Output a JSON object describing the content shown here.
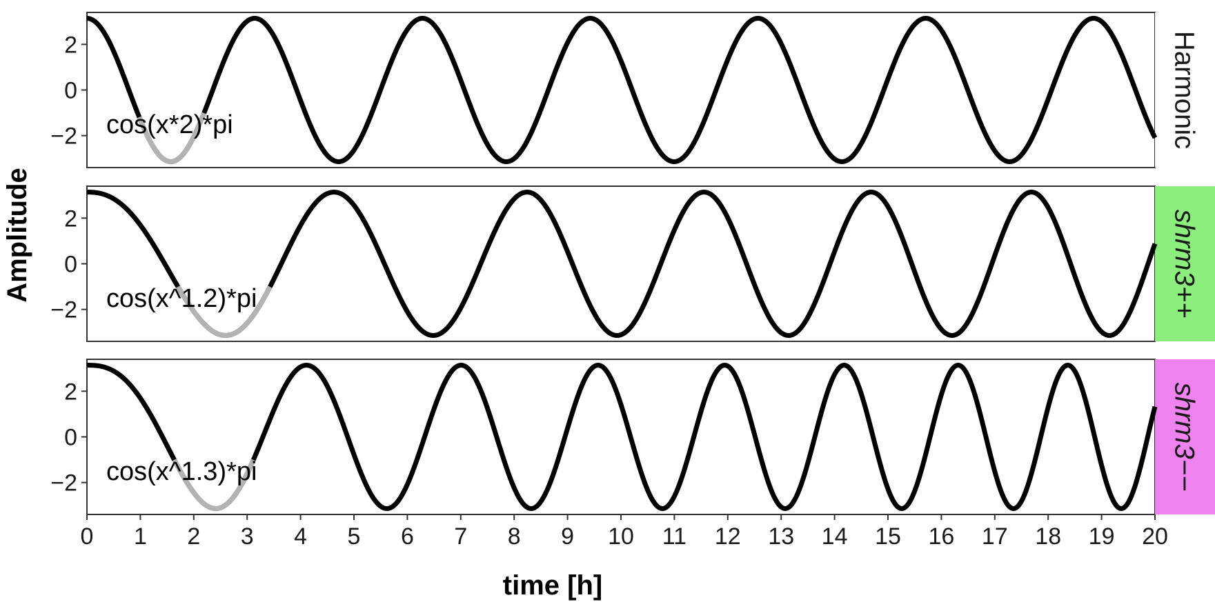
{
  "chart_data": {
    "type": "line",
    "xlabel": "time [h]",
    "ylabel": "Amplitude",
    "xlim": [
      0,
      20
    ],
    "ylim": [
      -3.4,
      3.4
    ],
    "x_ticks": [
      0,
      1,
      2,
      3,
      4,
      5,
      6,
      7,
      8,
      9,
      10,
      11,
      12,
      13,
      14,
      15,
      16,
      17,
      18,
      19,
      20
    ],
    "y_ticks": [
      -2,
      0,
      2
    ],
    "y_tick_labels": [
      "−2",
      "0",
      "2"
    ],
    "grid": false,
    "line_color": "#000000",
    "highlight_color": "#b3b3b3",
    "facets": [
      {
        "strip_label": "Harmonic",
        "strip_fill": "#ffffff",
        "strip_italic": false,
        "annotation": "cos(x*2)*pi",
        "formula": "harmonic",
        "exponent": 1,
        "highlight_x": [
          0.98,
          4.03
        ],
        "sample_points": {
          "x": [
            0,
            1.57,
            3.14,
            4.71,
            6.28,
            7.85,
            9.42,
            10.99,
            12.57,
            14.14,
            15.71,
            17.28,
            18.85,
            20
          ],
          "y": [
            3.14,
            -3.14,
            3.14,
            -3.14,
            3.14,
            -3.14,
            3.14,
            -3.14,
            3.14,
            -3.14,
            3.14,
            -3.14,
            3.14,
            -2.09
          ]
        }
      },
      {
        "strip_label": "shrm3++",
        "strip_fill": "#8cef7d",
        "strip_italic": true,
        "annotation": "cos(x^1.2)*pi",
        "formula": "power",
        "exponent": 1.2,
        "highlight_x": [
          1.7,
          3.7
        ],
        "sample_points": {
          "x": [
            0,
            2.6,
            4.66,
            6.51,
            8.23,
            9.87,
            11.44,
            12.96,
            14.43,
            15.87,
            17.27,
            18.65,
            20
          ],
          "y": [
            3.14,
            -3.14,
            3.14,
            -3.14,
            3.14,
            -3.14,
            3.14,
            -3.14,
            3.14,
            -3.14,
            3.14,
            -3.14,
            0.8
          ]
        }
      },
      {
        "strip_label": "shrm3−−",
        "strip_fill": "#ee82ee",
        "strip_italic": true,
        "annotation": "cos(x^1.3)*pi",
        "formula": "power",
        "exponent": 1.3,
        "highlight_x": [
          1.6,
          3.2
        ],
        "sample_points": {
          "x": [
            0,
            2.41,
            4.1,
            5.6,
            6.98,
            8.3,
            9.56,
            10.78,
            11.95,
            13.1,
            14.22,
            15.31,
            16.38,
            17.43,
            18.46,
            19.47,
            20
          ],
          "y": [
            3.14,
            -3.14,
            3.14,
            -3.14,
            3.14,
            -3.14,
            3.14,
            -3.14,
            3.14,
            -3.14,
            3.14,
            -3.14,
            3.14,
            -3.14,
            3.14,
            -3.14,
            1.3
          ]
        }
      }
    ]
  }
}
